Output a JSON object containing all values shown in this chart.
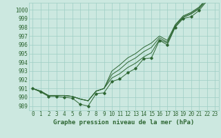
{
  "xlabel": "Graphe pression niveau de la mer (hPa)",
  "xlim": [
    -0.5,
    23.5
  ],
  "ylim": [
    988.5,
    1000.8
  ],
  "yticks": [
    989,
    990,
    991,
    992,
    993,
    994,
    995,
    996,
    997,
    998,
    999,
    1000
  ],
  "xticks": [
    0,
    1,
    2,
    3,
    4,
    5,
    6,
    7,
    8,
    9,
    10,
    11,
    12,
    13,
    14,
    15,
    16,
    17,
    18,
    19,
    20,
    21,
    22,
    23
  ],
  "bg_color": "#cce8e0",
  "grid_color": "#9ecec4",
  "line_color": "#2d6632",
  "marker_line": [
    991.0,
    990.6,
    990.1,
    990.1,
    990.0,
    989.9,
    989.2,
    989.0,
    990.4,
    990.5,
    991.8,
    992.1,
    992.8,
    993.3,
    994.4,
    994.5,
    996.5,
    996.0,
    998.0,
    999.0,
    999.2,
    999.9,
    1001.0,
    1001.3
  ],
  "smooth_lines": [
    [
      991.0,
      990.7,
      990.2,
      990.2,
      990.2,
      990.1,
      989.8,
      989.6,
      990.7,
      991.0,
      992.2,
      992.7,
      993.4,
      993.9,
      994.6,
      995.1,
      996.6,
      996.2,
      998.1,
      999.1,
      999.5,
      1000.1,
      1001.1,
      1001.5
    ],
    [
      991.0,
      990.7,
      990.2,
      990.2,
      990.2,
      990.1,
      989.8,
      989.6,
      990.7,
      991.0,
      992.6,
      993.2,
      994.0,
      994.5,
      995.2,
      995.7,
      996.8,
      996.3,
      998.2,
      999.2,
      999.6,
      1000.2,
      1001.2,
      1001.6
    ],
    [
      991.0,
      990.7,
      990.2,
      990.2,
      990.2,
      990.1,
      989.8,
      989.6,
      990.7,
      991.0,
      993.0,
      993.7,
      994.5,
      995.0,
      995.7,
      996.2,
      997.0,
      996.5,
      998.3,
      999.3,
      999.7,
      1000.3,
      1001.3,
      1001.7
    ]
  ],
  "tick_fontsize": 5.5,
  "label_fontsize": 6.5
}
